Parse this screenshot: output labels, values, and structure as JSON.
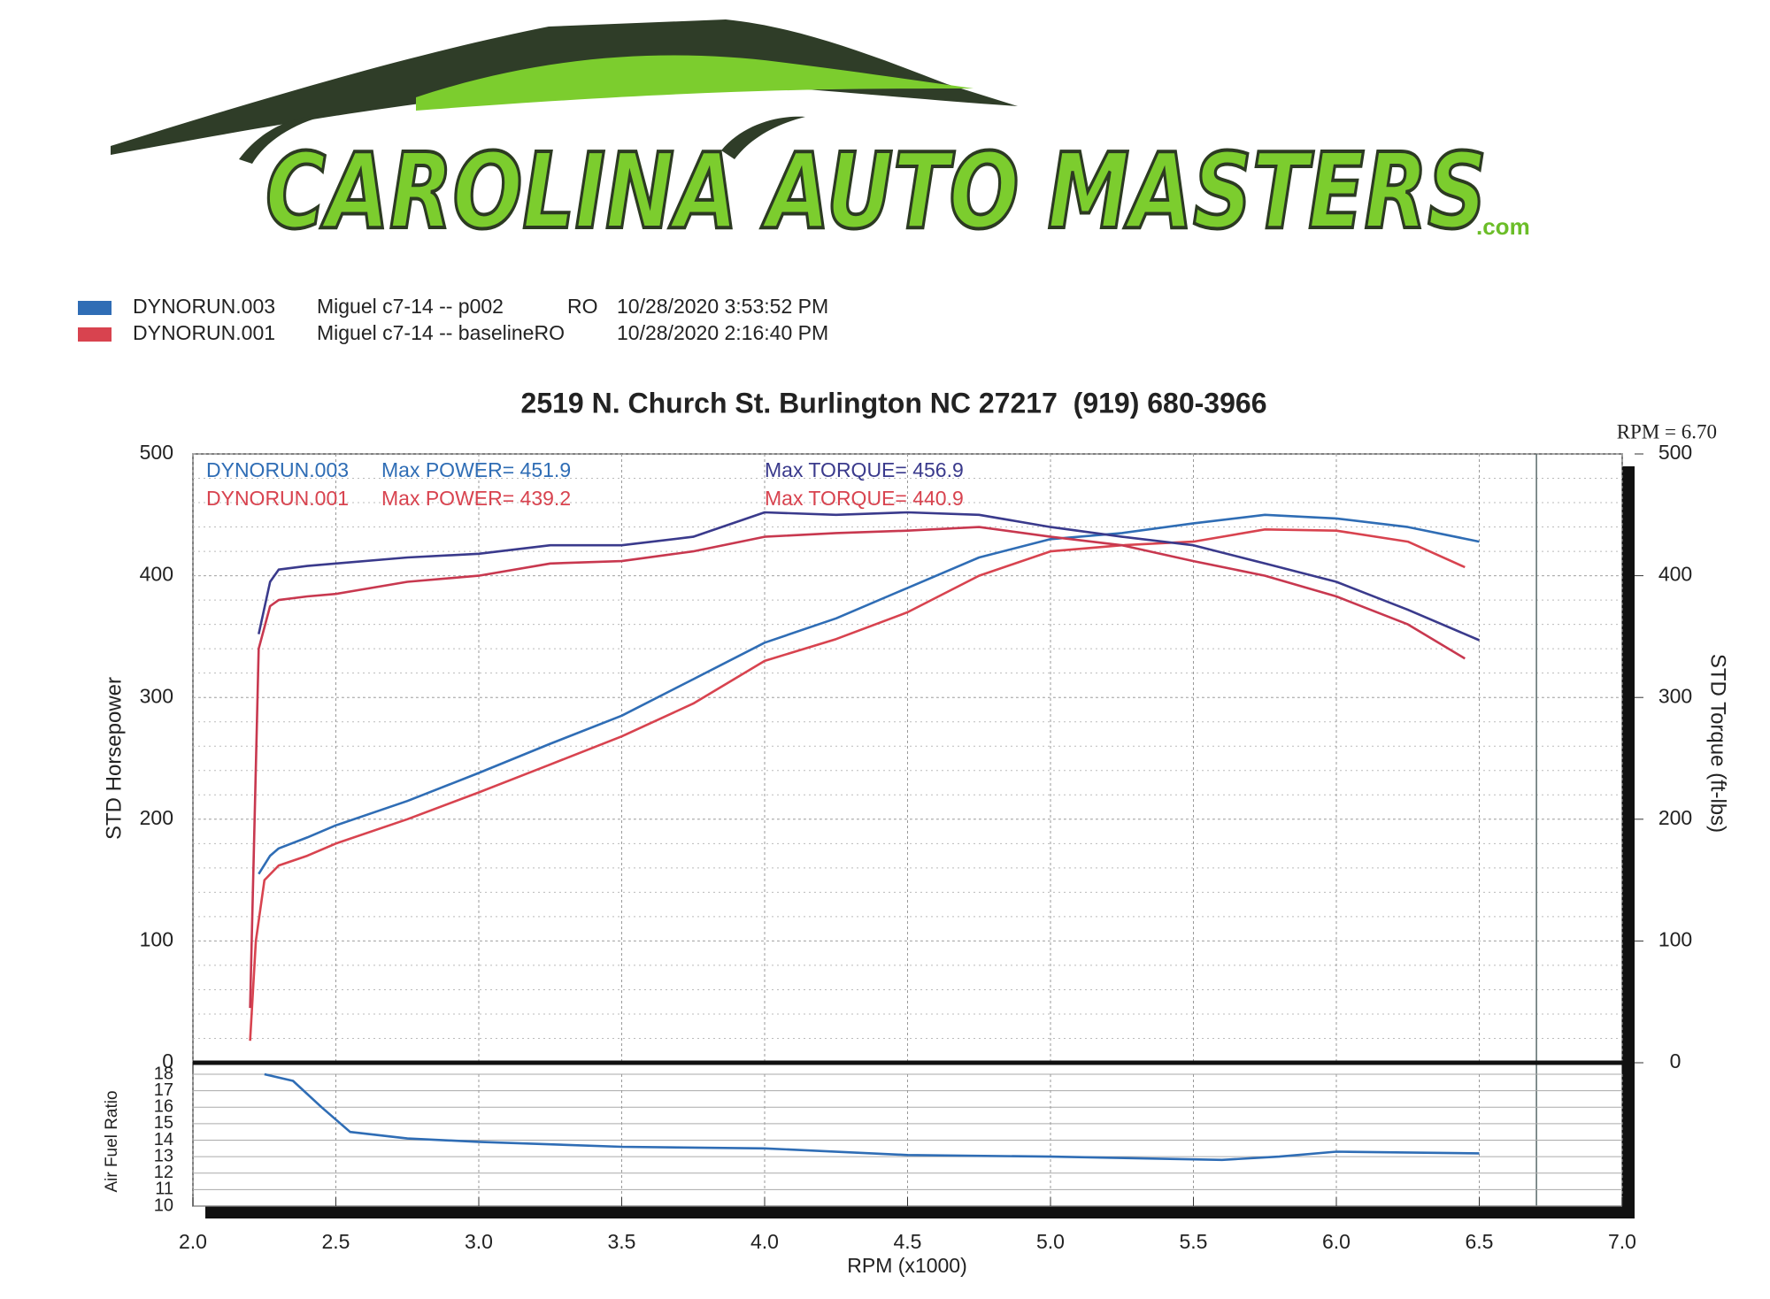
{
  "logo": {
    "name": "CAROLINA AUTO MASTERS",
    "suffix": ".com"
  },
  "legend": [
    {
      "run": "DYNORUN.003",
      "description": "Miguel c7-14 -- p002",
      "flag": "RO",
      "date": "10/28/2020 3:53:52 PM",
      "color": "#2f6db5"
    },
    {
      "run": "DYNORUN.001",
      "description": "Miguel c7-14 -- baselineRO",
      "date": "10/28/2020 2:16:40 PM",
      "color": "#d8434f"
    }
  ],
  "chart_data": [
    {
      "type": "line",
      "title": "2519 N. Church St. Burlington NC 27217  (919) 680-3966",
      "ylabel": "STD Horsepower",
      "y2label": "STD Torque (ft-lbs)",
      "xlim": [
        2,
        7
      ],
      "ylim": [
        0,
        500
      ],
      "yticks": [
        0,
        100,
        200,
        300,
        400,
        500
      ],
      "y2lim": [
        0,
        500
      ],
      "y2ticks": [
        0,
        100,
        200,
        300,
        400,
        500
      ],
      "grid": true,
      "cursor": {
        "value": 6.7,
        "label": "RPM = 6.70"
      },
      "stats": [
        {
          "run": "DYNORUN.003",
          "power": "Max POWER= 451.9",
          "torque": "Max TORQUE= 456.9",
          "color": "#2f6db5",
          "torque_color": "#3a3a8c"
        },
        {
          "run": "DYNORUN.001",
          "power": "Max POWER= 439.2",
          "torque": "Max TORQUE= 440.9",
          "color": "#d8434f",
          "torque_color": "#d8434f"
        }
      ],
      "series": [
        {
          "color": "#2f6db5",
          "x": [
            2.23,
            2.27,
            2.3,
            2.4,
            2.5,
            2.75,
            3.0,
            3.25,
            3.5,
            3.75,
            4.0,
            4.25,
            4.5,
            4.75,
            5.0,
            5.25,
            5.5,
            5.75,
            6.0,
            6.25,
            6.5
          ],
          "values": [
            155,
            170,
            176,
            185,
            195,
            215,
            238,
            262,
            285,
            315,
            345,
            365,
            390,
            415,
            430,
            435,
            443,
            450,
            447,
            440,
            428
          ]
        },
        {
          "color": "#d8434f",
          "x": [
            2.2,
            2.22,
            2.25,
            2.3,
            2.4,
            2.5,
            2.75,
            3.0,
            3.25,
            3.5,
            3.75,
            4.0,
            4.25,
            4.5,
            4.75,
            5.0,
            5.25,
            5.5,
            5.75,
            6.0,
            6.25,
            6.45
          ],
          "values": [
            18,
            100,
            150,
            162,
            170,
            180,
            200,
            222,
            245,
            268,
            295,
            330,
            348,
            370,
            400,
            420,
            425,
            428,
            438,
            437,
            428,
            407
          ]
        },
        {
          "color": "#3a3a8c",
          "axis": "y2",
          "x": [
            2.23,
            2.27,
            2.3,
            2.4,
            2.5,
            2.75,
            3.0,
            3.25,
            3.5,
            3.75,
            4.0,
            4.25,
            4.5,
            4.75,
            5.0,
            5.25,
            5.5,
            5.75,
            6.0,
            6.25,
            6.5
          ],
          "values": [
            352,
            395,
            405,
            408,
            410,
            415,
            418,
            425,
            425,
            432,
            452,
            450,
            452,
            450,
            440,
            432,
            425,
            410,
            395,
            372,
            347
          ]
        },
        {
          "color": "#c8384f",
          "axis": "y2",
          "x": [
            2.2,
            2.23,
            2.27,
            2.3,
            2.4,
            2.5,
            2.75,
            3.0,
            3.25,
            3.5,
            3.75,
            4.0,
            4.25,
            4.5,
            4.75,
            5.0,
            5.25,
            5.5,
            5.75,
            6.0,
            6.25,
            6.45
          ],
          "values": [
            45,
            340,
            375,
            380,
            383,
            385,
            395,
            400,
            410,
            412,
            420,
            432,
            435,
            437,
            440,
            432,
            425,
            412,
            400,
            383,
            360,
            332
          ]
        }
      ]
    },
    {
      "type": "line",
      "ylabel": "Air Fuel Ratio",
      "xlabel": "RPM (x1000)",
      "xlim": [
        2,
        7
      ],
      "xticks": [
        {
          "value": 2,
          "label": "2.0"
        },
        2.5,
        {
          "value": 3,
          "label": "3.0"
        },
        3.5,
        {
          "value": 4,
          "label": "4.0"
        },
        4.5,
        {
          "value": 5,
          "label": "5.0"
        },
        5.5,
        {
          "value": 6,
          "label": "6.0"
        },
        6.5,
        {
          "value": 7,
          "label": "7.0"
        }
      ],
      "ylim": [
        10,
        18
      ],
      "yticks": [
        10,
        11,
        12,
        13,
        14,
        15,
        16,
        17,
        18
      ],
      "grid": true,
      "series": [
        {
          "color": "#2f6db5",
          "x": [
            2.25,
            2.35,
            2.45,
            2.55,
            2.75,
            3.0,
            3.5,
            4.0,
            4.5,
            5.0,
            5.6,
            5.8,
            6.0,
            6.5
          ],
          "values": [
            18,
            17.6,
            16,
            14.5,
            14.1,
            13.9,
            13.6,
            13.5,
            13.1,
            13.0,
            12.8,
            13.0,
            13.3,
            13.2
          ]
        }
      ]
    }
  ]
}
